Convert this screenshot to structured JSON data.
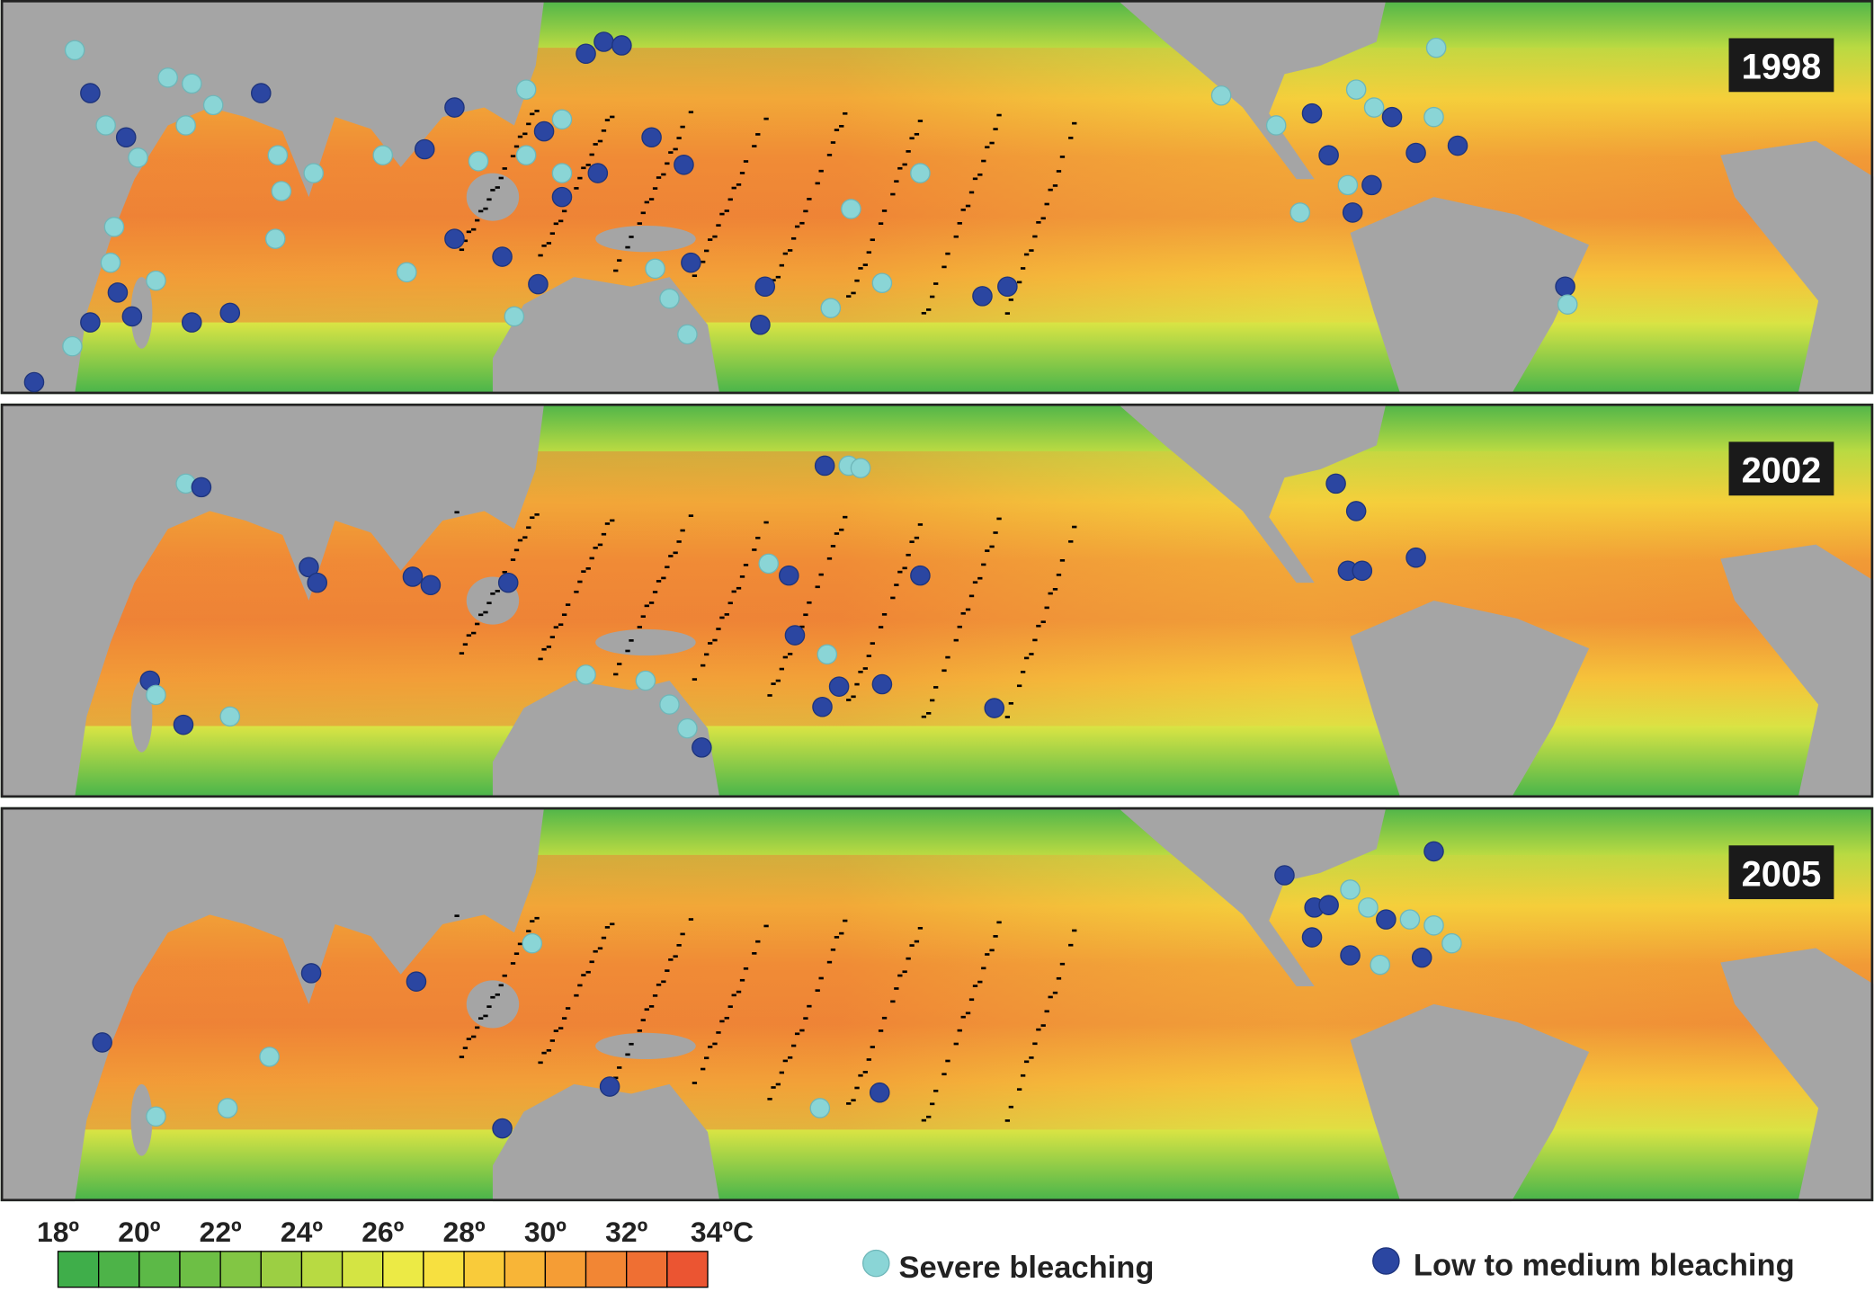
{
  "panels": [
    {
      "year": "1998"
    },
    {
      "year": "2002"
    },
    {
      "year": "2005"
    }
  ],
  "legend": {
    "colorbar": {
      "labels": [
        "18º",
        "20º",
        "22º",
        "24º",
        "26º",
        "28º",
        "30º",
        "32º",
        "34ºC"
      ],
      "colors": [
        "#3fae4a",
        "#4db348",
        "#5cb947",
        "#6dbf45",
        "#82c644",
        "#9ccf43",
        "#b8da42",
        "#d4e443",
        "#ecea45",
        "#f7e040",
        "#f9cb3a",
        "#f8b537",
        "#f59d35",
        "#f28634",
        "#ef6f33",
        "#eb5532"
      ]
    },
    "severe": {
      "label": "Severe bleaching",
      "color": "#8ad5d6"
    },
    "low_medium": {
      "label": "Low to medium bleaching",
      "color": "#2b46a1"
    }
  }
}
